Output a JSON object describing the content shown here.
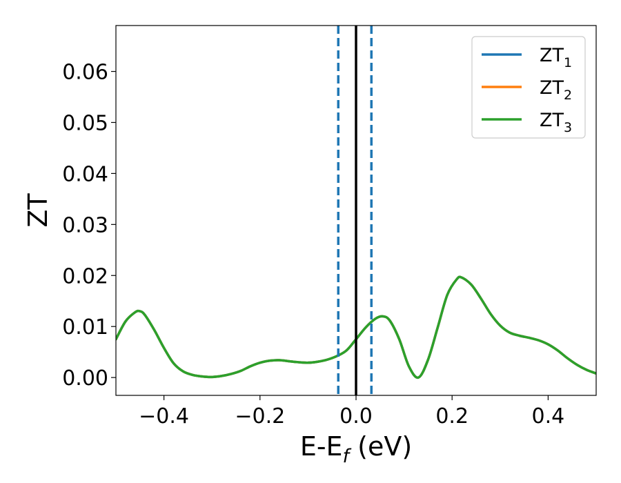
{
  "chart_data": {
    "type": "line",
    "title": "",
    "xlabel": {
      "main": "E-E",
      "sub": "f",
      "suffix": " (eV)"
    },
    "ylabel": "ZT",
    "xlim": [
      -0.5,
      0.5
    ],
    "ylim": [
      -0.0035,
      0.069
    ],
    "x_ticks": [
      {
        "value": -0.4,
        "label": "−0.4"
      },
      {
        "value": -0.2,
        "label": "−0.2"
      },
      {
        "value": 0.0,
        "label": "0.0"
      },
      {
        "value": 0.2,
        "label": "0.2"
      },
      {
        "value": 0.4,
        "label": "0.4"
      }
    ],
    "y_ticks": [
      {
        "value": 0.0,
        "label": "0.00"
      },
      {
        "value": 0.01,
        "label": "0.01"
      },
      {
        "value": 0.02,
        "label": "0.02"
      },
      {
        "value": 0.03,
        "label": "0.03"
      },
      {
        "value": 0.04,
        "label": "0.04"
      },
      {
        "value": 0.05,
        "label": "0.05"
      },
      {
        "value": 0.06,
        "label": "0.06"
      }
    ],
    "grid": false,
    "legend_position": "top-right",
    "vertical_lines": [
      {
        "x": -0.037,
        "style": "dashed",
        "color": "#1f77b4"
      },
      {
        "x": 0.0,
        "style": "solid",
        "color": "#000000"
      },
      {
        "x": 0.032,
        "style": "dashed",
        "color": "#1f77b4"
      }
    ],
    "series": [
      {
        "name": "ZT",
        "subscript": "1",
        "color": "#1f77b4",
        "x": [
          -0.5,
          -0.48,
          -0.46,
          -0.45,
          -0.44,
          -0.42,
          -0.4,
          -0.38,
          -0.36,
          -0.34,
          -0.32,
          -0.3,
          -0.28,
          -0.26,
          -0.24,
          -0.22,
          -0.2,
          -0.18,
          -0.16,
          -0.14,
          -0.12,
          -0.1,
          -0.08,
          -0.06,
          -0.04,
          -0.02,
          0.0,
          0.02,
          0.04,
          0.055,
          0.07,
          0.09,
          0.11,
          0.13,
          0.15,
          0.17,
          0.19,
          0.21,
          0.22,
          0.24,
          0.26,
          0.28,
          0.3,
          0.32,
          0.34,
          0.36,
          0.38,
          0.4,
          0.42,
          0.44,
          0.46,
          0.48,
          0.5
        ],
        "values": [
          0.0075,
          0.011,
          0.0128,
          0.013,
          0.0123,
          0.0093,
          0.0058,
          0.0028,
          0.0012,
          0.0005,
          0.0002,
          0.0001,
          0.0003,
          0.0007,
          0.0013,
          0.0022,
          0.0029,
          0.0033,
          0.0034,
          0.0032,
          0.003,
          0.0029,
          0.0031,
          0.0035,
          0.0042,
          0.0053,
          0.0075,
          0.0098,
          0.0115,
          0.012,
          0.0112,
          0.0075,
          0.0022,
          0.0,
          0.0035,
          0.0098,
          0.0162,
          0.0193,
          0.0196,
          0.0182,
          0.0155,
          0.0125,
          0.0102,
          0.0088,
          0.0082,
          0.0078,
          0.0073,
          0.0065,
          0.0053,
          0.0038,
          0.0025,
          0.0015,
          0.0008
        ]
      },
      {
        "name": "ZT",
        "subscript": "2",
        "color": "#ff7f0e",
        "x": [
          -0.5,
          -0.48,
          -0.46,
          -0.45,
          -0.44,
          -0.42,
          -0.4,
          -0.38,
          -0.36,
          -0.34,
          -0.32,
          -0.3,
          -0.28,
          -0.26,
          -0.24,
          -0.22,
          -0.2,
          -0.18,
          -0.16,
          -0.14,
          -0.12,
          -0.1,
          -0.08,
          -0.06,
          -0.04,
          -0.02,
          0.0,
          0.02,
          0.04,
          0.055,
          0.07,
          0.09,
          0.11,
          0.13,
          0.15,
          0.17,
          0.19,
          0.21,
          0.22,
          0.24,
          0.26,
          0.28,
          0.3,
          0.32,
          0.34,
          0.36,
          0.38,
          0.4,
          0.42,
          0.44,
          0.46,
          0.48,
          0.5
        ],
        "values": [
          0.0075,
          0.011,
          0.0128,
          0.013,
          0.0123,
          0.0093,
          0.0058,
          0.0028,
          0.0012,
          0.0005,
          0.0002,
          0.0001,
          0.0003,
          0.0007,
          0.0013,
          0.0022,
          0.0029,
          0.0033,
          0.0034,
          0.0032,
          0.003,
          0.0029,
          0.0031,
          0.0035,
          0.0042,
          0.0053,
          0.0075,
          0.0098,
          0.0115,
          0.012,
          0.0112,
          0.0075,
          0.0022,
          0.0,
          0.0035,
          0.0098,
          0.0162,
          0.0193,
          0.0196,
          0.0182,
          0.0155,
          0.0125,
          0.0102,
          0.0088,
          0.0082,
          0.0078,
          0.0073,
          0.0065,
          0.0053,
          0.0038,
          0.0025,
          0.0015,
          0.0008
        ]
      },
      {
        "name": "ZT",
        "subscript": "3",
        "color": "#2ca02c",
        "x": [
          -0.5,
          -0.48,
          -0.46,
          -0.45,
          -0.44,
          -0.42,
          -0.4,
          -0.38,
          -0.36,
          -0.34,
          -0.32,
          -0.3,
          -0.28,
          -0.26,
          -0.24,
          -0.22,
          -0.2,
          -0.18,
          -0.16,
          -0.14,
          -0.12,
          -0.1,
          -0.08,
          -0.06,
          -0.04,
          -0.02,
          0.0,
          0.02,
          0.04,
          0.055,
          0.07,
          0.09,
          0.11,
          0.13,
          0.15,
          0.17,
          0.19,
          0.21,
          0.22,
          0.24,
          0.26,
          0.28,
          0.3,
          0.32,
          0.34,
          0.36,
          0.38,
          0.4,
          0.42,
          0.44,
          0.46,
          0.48,
          0.5
        ],
        "values": [
          0.0075,
          0.011,
          0.0128,
          0.013,
          0.0123,
          0.0093,
          0.0058,
          0.0028,
          0.0012,
          0.0005,
          0.0002,
          0.0001,
          0.0003,
          0.0007,
          0.0013,
          0.0022,
          0.0029,
          0.0033,
          0.0034,
          0.0032,
          0.003,
          0.0029,
          0.0031,
          0.0035,
          0.0042,
          0.0053,
          0.0075,
          0.0098,
          0.0115,
          0.012,
          0.0112,
          0.0075,
          0.0022,
          0.0,
          0.0035,
          0.0098,
          0.0162,
          0.0193,
          0.0196,
          0.0182,
          0.0155,
          0.0125,
          0.0102,
          0.0088,
          0.0082,
          0.0078,
          0.0073,
          0.0065,
          0.0053,
          0.0038,
          0.0025,
          0.0015,
          0.0008
        ]
      }
    ]
  }
}
